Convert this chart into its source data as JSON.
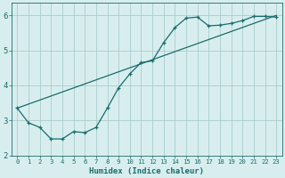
{
  "xlabel": "Humidex (Indice chaleur)",
  "bg_color": "#d8eeee",
  "grid_color": "#aacccc",
  "line_color": "#1a6b6b",
  "xlim": [
    -0.5,
    23.5
  ],
  "ylim": [
    2.0,
    6.35
  ],
  "yticks": [
    2,
    3,
    4,
    5,
    6
  ],
  "xticks": [
    0,
    1,
    2,
    3,
    4,
    5,
    6,
    7,
    8,
    9,
    10,
    11,
    12,
    13,
    14,
    15,
    16,
    17,
    18,
    19,
    20,
    21,
    22,
    23
  ],
  "curve_x": [
    0,
    1,
    2,
    3,
    4,
    5,
    6,
    7,
    8,
    9,
    10,
    11,
    12,
    13,
    14,
    15,
    16,
    17,
    18,
    19,
    20,
    21,
    22,
    23
  ],
  "curve_y": [
    3.35,
    2.93,
    2.8,
    2.47,
    2.47,
    2.68,
    2.65,
    2.8,
    3.35,
    3.93,
    4.33,
    4.65,
    4.7,
    5.22,
    5.65,
    5.92,
    5.95,
    5.7,
    5.72,
    5.77,
    5.85,
    5.97,
    5.97,
    5.95
  ],
  "line_x": [
    0,
    23
  ],
  "line_y": [
    3.35,
    6.0
  ]
}
